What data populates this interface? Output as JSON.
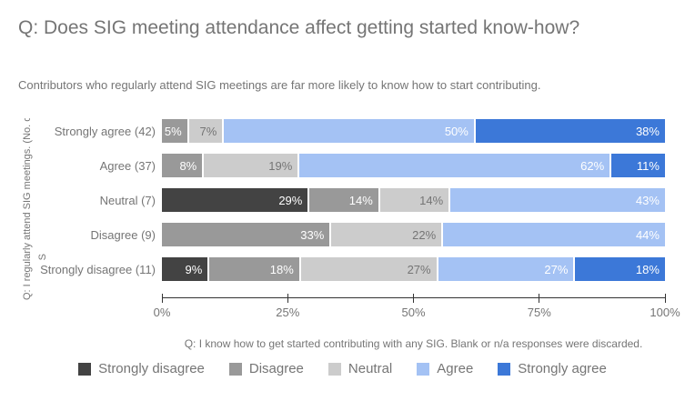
{
  "chart_data": {
    "type": "bar",
    "orientation": "horizontal",
    "stacked": true,
    "title": "Q: Does SIG meeting attendance affect getting started know-how?",
    "subtitle": "Contributors who regularly attend SIG meetings are far more likely to know how to start contributing.",
    "y_axis_title": "Q: I regularly attend SIG meetings. (No. of",
    "y_axis_title_fragment": "S",
    "x_axis_caption": "Q: I know how to get started contributing with any SIG. Blank or n/a responses were discarded.",
    "categories": [
      "Strongly agree (42)",
      "Agree (37)",
      "Neutral (7)",
      "Disagree (9)",
      "Strongly disagree (11)"
    ],
    "series": [
      {
        "name": "Strongly disagree",
        "color": "#434343",
        "label_color": "#ffffff",
        "values": [
          0,
          0,
          29,
          0,
          9
        ]
      },
      {
        "name": "Disagree",
        "color": "#999999",
        "label_color": "#ffffff",
        "values": [
          5,
          8,
          14,
          33,
          18
        ]
      },
      {
        "name": "Neutral",
        "color": "#cccccc",
        "label_color": "#757575",
        "values": [
          7,
          19,
          14,
          22,
          27
        ]
      },
      {
        "name": "Agree",
        "color": "#a4c2f4",
        "label_color": "#ffffff",
        "values": [
          50,
          62,
          43,
          44,
          27
        ]
      },
      {
        "name": "Strongly agree",
        "color": "#3c78d8",
        "label_color": "#ffffff",
        "values": [
          38,
          11,
          0,
          0,
          18
        ]
      }
    ],
    "value_suffix": "%",
    "x_ticks": [
      "0%",
      "25%",
      "50%",
      "75%",
      "100%"
    ],
    "xlim": [
      0,
      100
    ],
    "grid": false,
    "legend_position": "bottom",
    "axis_line_color": "#333333",
    "text_color": "#757575"
  }
}
